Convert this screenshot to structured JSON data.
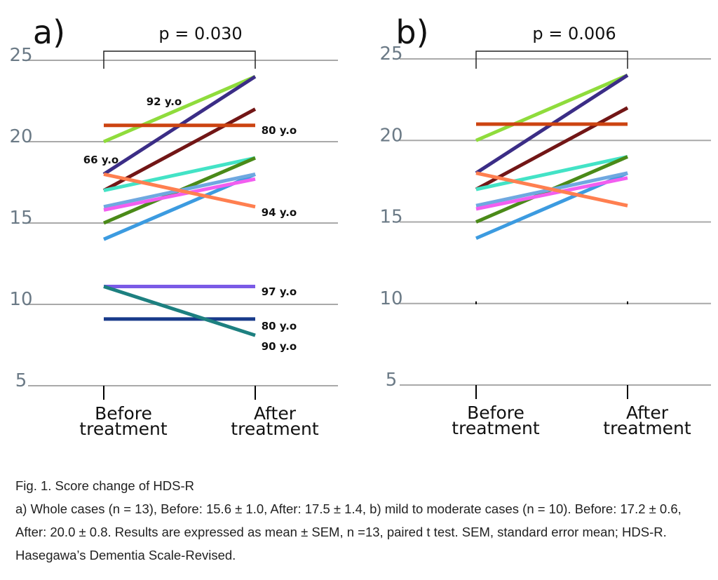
{
  "chart_data": [
    {
      "type": "line",
      "panel_label": "a)",
      "p_value_label": "p = 0.030",
      "categories": [
        "Before\ntreatment",
        "After\ntreatment"
      ],
      "y_ticks": [
        25,
        20,
        15,
        10,
        5
      ],
      "ylim": [
        5,
        25
      ],
      "grid": true,
      "series": [
        {
          "values": [
            20,
            24
          ],
          "color": "#8fdc3c"
        },
        {
          "values": [
            18,
            24
          ],
          "color": "#3b2d86"
        },
        {
          "values": [
            17,
            22
          ],
          "color": "#721616"
        },
        {
          "values": [
            21,
            21
          ],
          "color": "#cc4411"
        },
        {
          "values": [
            17,
            19
          ],
          "color": "#43e3c6"
        },
        {
          "values": [
            15,
            19
          ],
          "color": "#4a8a18"
        },
        {
          "values": [
            14,
            18
          ],
          "color": "#3c9be0"
        },
        {
          "values": [
            16,
            18
          ],
          "color": "#6fa8e0"
        },
        {
          "values": [
            15.8,
            17.7
          ],
          "color": "#f25ef0"
        },
        {
          "values": [
            18,
            16
          ],
          "color": "#ff7f50"
        },
        {
          "values": [
            11.1,
            11.1
          ],
          "color": "#7a5ae6"
        },
        {
          "values": [
            9.1,
            9.1
          ],
          "color": "#183a8a"
        },
        {
          "values": [
            11.1,
            8.1
          ],
          "color": "#1d8080"
        }
      ],
      "annotations": [
        "92 y.o",
        "66 y.o",
        "80 y.o",
        "94 y.o",
        "97 y.o",
        "80 y.o",
        "90 y.o"
      ]
    },
    {
      "type": "line",
      "panel_label": "b)",
      "p_value_label": "p = 0.006",
      "categories": [
        "Before\ntreatment",
        "After\ntreatment"
      ],
      "y_ticks": [
        25,
        20,
        15,
        10,
        5
      ],
      "ylim": [
        5,
        25
      ],
      "grid": true,
      "series": [
        {
          "values": [
            20,
            24
          ],
          "color": "#8fdc3c"
        },
        {
          "values": [
            18,
            24
          ],
          "color": "#3b2d86"
        },
        {
          "values": [
            17,
            22
          ],
          "color": "#721616"
        },
        {
          "values": [
            21,
            21
          ],
          "color": "#cc4411"
        },
        {
          "values": [
            17,
            19
          ],
          "color": "#43e3c6"
        },
        {
          "values": [
            15,
            19
          ],
          "color": "#4a8a18"
        },
        {
          "values": [
            14,
            18
          ],
          "color": "#3c9be0"
        },
        {
          "values": [
            16,
            18
          ],
          "color": "#6fa8e0"
        },
        {
          "values": [
            15.8,
            17.7
          ],
          "color": "#f25ef0"
        },
        {
          "values": [
            18,
            16
          ],
          "color": "#ff7f50"
        }
      ],
      "annotations": []
    }
  ],
  "caption": {
    "line1": "Fig. 1. Score change of HDS-R",
    "line2": "a) Whole cases (n = 13), Before: 15.6 ± 1.0, After: 17.5 ± 1.4, b) mild to moderate cases (n = 10). Before: 17.2 ± 0.6, After: 20.0 ± 0.8. Results are expressed as mean ± SEM, n =13, paired t test. SEM, standard error mean; HDS-R. Hasegawa’s Dementia Scale-Revised."
  }
}
